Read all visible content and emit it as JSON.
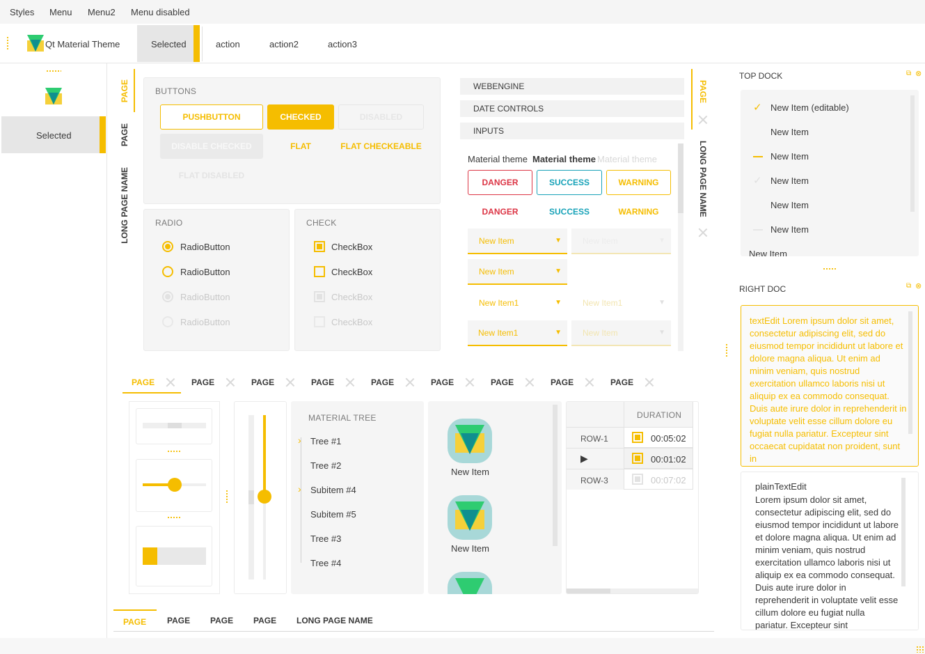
{
  "menubar": {
    "items": [
      "Styles",
      "Menu",
      "Menu2",
      "Menu disabled"
    ]
  },
  "toolbar": {
    "title": "Qt Material Theme",
    "selected": "Selected",
    "actions": [
      "action",
      "action2",
      "action3"
    ]
  },
  "left_toolbar": {
    "selected": "Selected"
  },
  "left_tabs": [
    "PAGE",
    "PAGE",
    "LONG PAGE NAME"
  ],
  "buttons_group": {
    "caption": "BUTTONS",
    "pushbutton": "PUSHBUTTON",
    "checked": "CHECKED",
    "disabled": "DISABLED",
    "disable_checked": "DISABLE CHECKED",
    "flat": "FLAT",
    "flat_checkeable": "FLAT CHECKEABLE",
    "flat_disabled": "FLAT DISABLED"
  },
  "radio_group": {
    "caption": "RADIO",
    "items": [
      "RadioButton",
      "RadioButton",
      "RadioButton",
      "RadioButton"
    ]
  },
  "check_group": {
    "caption": "CHECK",
    "items": [
      "CheckBox",
      "CheckBox",
      "CheckBox",
      "CheckBox"
    ]
  },
  "toolbox": {
    "sections": [
      "WEBENGINE",
      "DATE CONTROLS",
      "INPUTS"
    ]
  },
  "inputs": {
    "theme_labels": [
      "Material theme",
      "Material theme",
      "Material theme"
    ],
    "buttons": [
      "DANGER",
      "SUCCESS",
      "WARNING"
    ],
    "combo1": "New Item",
    "combo1_dis": "New Item",
    "combo2": "New Item",
    "combo3": "New Item1",
    "combo3_dis": "New Item1",
    "combo4": "New Item1",
    "combo4_dis": "New Item"
  },
  "right_tabs": [
    "PAGE",
    "LONG PAGE NAME"
  ],
  "middle_tabs": [
    "PAGE",
    "PAGE",
    "PAGE",
    "PAGE",
    "PAGE",
    "PAGE",
    "PAGE",
    "PAGE",
    "PAGE"
  ],
  "tree": {
    "header": "MATERIAL TREE",
    "items": [
      "Tree #1",
      "Tree #2",
      "Subitem #4",
      "Subitem #5",
      "Tree #3",
      "Tree #4"
    ]
  },
  "icons_list": {
    "items": [
      "New Item",
      "New Item"
    ]
  },
  "table": {
    "header": "DURATION",
    "rows": [
      {
        "label": "ROW-1",
        "value": "00:05:02"
      },
      {
        "label": "",
        "value": "00:01:02"
      },
      {
        "label": "ROW-3",
        "value": "00:07:02"
      }
    ]
  },
  "bottom_tabs": [
    "PAGE",
    "PAGE",
    "PAGE",
    "PAGE",
    "LONG PAGE NAME"
  ],
  "top_dock": {
    "title": "TOP DOCK",
    "items": [
      "New Item (editable)",
      "New Item",
      "New Item",
      "New Item",
      "New Item",
      "New Item",
      "New Item"
    ]
  },
  "right_dock": {
    "title": "RIGHT DOC",
    "textedit": "textEdit Lorem ipsum dolor sit amet, consectetur adipiscing elit, sed do eiusmod tempor incididunt ut labore et dolore magna aliqua. Ut enim ad minim veniam, quis nostrud exercitation ullamco laboris nisi ut aliquip ex ea commodo consequat. Duis aute irure dolor in reprehenderit in voluptate velit esse cillum dolore eu fugiat nulla pariatur. Excepteur sint occaecat cupidatat non proident, sunt in",
    "plain_title": "plainTextEdit",
    "plain": "Lorem ipsum dolor sit amet, consectetur adipiscing elit, sed do eiusmod tempor incididunt ut labore et dolore magna aliqua. Ut enim ad minim veniam, quis nostrud exercitation ullamco laboris nisi ut aliquip ex ea commodo consequat. Duis aute irure dolor in reprehenderit in voluptate velit esse cillum dolore eu fugiat nulla pariatur. Excepteur sint"
  },
  "colors": {
    "accent": "#f5bd00",
    "logo_green": "#2ecc71",
    "logo_teal": "#109090"
  }
}
